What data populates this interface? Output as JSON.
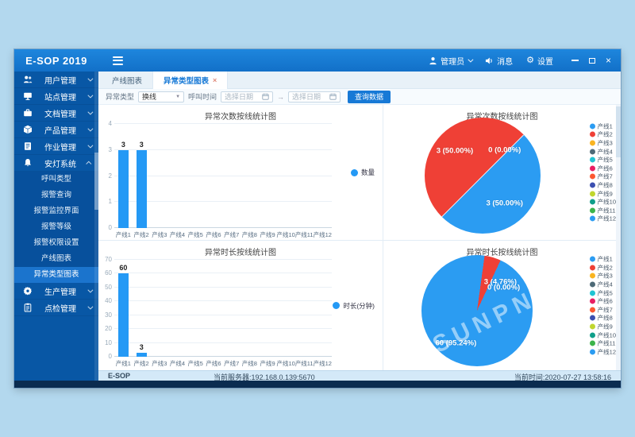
{
  "app": {
    "title": "E-SOP 2019"
  },
  "header": {
    "user_label": "管理员",
    "messages_label": "消息",
    "settings_label": "设置"
  },
  "sidebar": {
    "items": [
      {
        "label": "用户管理",
        "icon": "users-icon",
        "expandable": true
      },
      {
        "label": "站点管理",
        "icon": "monitor-icon",
        "expandable": true
      },
      {
        "label": "文档管理",
        "icon": "briefcase-icon",
        "expandable": true
      },
      {
        "label": "产品管理",
        "icon": "product-box-icon",
        "expandable": true
      },
      {
        "label": "作业管理",
        "icon": "tasks-icon",
        "expandable": true
      },
      {
        "label": "安灯系统",
        "icon": "bell-icon",
        "expandable": true,
        "expanded": true,
        "children": [
          {
            "label": "呼叫类型"
          },
          {
            "label": "报警查询"
          },
          {
            "label": "报警监控界面"
          },
          {
            "label": "报警等级"
          },
          {
            "label": "报警权限设置"
          },
          {
            "label": "产线图表"
          },
          {
            "label": "异常类型图表",
            "active": true
          }
        ]
      },
      {
        "label": "生产管理",
        "icon": "gear-icon",
        "expandable": true
      },
      {
        "label": "点检管理",
        "icon": "clipboard-icon",
        "expandable": true
      }
    ]
  },
  "tabs": [
    {
      "label": "产线图表",
      "active": false,
      "closable": false
    },
    {
      "label": "异常类型图表",
      "active": true,
      "closable": true
    }
  ],
  "filters": {
    "type_label": "异常类型",
    "type_value": "换线",
    "time_label": "呼叫时间",
    "date_from_placeholder": "选择日期",
    "range_separator": "→",
    "date_to_placeholder": "选择日期",
    "search_button": "查询数据"
  },
  "pie_colors": [
    "#2b9cf2",
    "#ef4036",
    "#f9b421",
    "#4d6a77",
    "#21c4d3",
    "#e91e63",
    "#fc5730",
    "#3b4fb0",
    "#c0d62e",
    "#0f9f8a",
    "#3cb44a",
    "#2b9cf2"
  ],
  "chart_data": [
    {
      "id": "abnormal-count-bar",
      "type": "bar",
      "title": "异常次数按线统计图",
      "categories": [
        "产线1",
        "产线2",
        "产线3",
        "产线4",
        "产线5",
        "产线6",
        "产线7",
        "产线8",
        "产线9",
        "产线10",
        "产线11",
        "产线12"
      ],
      "values": [
        3,
        3,
        0,
        0,
        0,
        0,
        0,
        0,
        0,
        0,
        0,
        0
      ],
      "ylim": [
        0,
        4
      ],
      "yticks": [
        0,
        1,
        2,
        3,
        4
      ],
      "legend": "数量",
      "legend_position": "right",
      "bar_color": "#2499f5",
      "grid": true
    },
    {
      "id": "abnormal-count-pie",
      "type": "pie",
      "title": "异常次数按线统计图",
      "categories": [
        "产线1",
        "产线2",
        "产线3",
        "产线4",
        "产线5",
        "产线6",
        "产线7",
        "产线8",
        "产线9",
        "产线10",
        "产线11",
        "产线12"
      ],
      "values": [
        3,
        3,
        0,
        0,
        0,
        0,
        0,
        0,
        0,
        0,
        0,
        0
      ],
      "start_angle": 45,
      "divider_angle": 45,
      "legend_position": "right",
      "visible_labels": [
        {
          "text": "3 (50.00%)",
          "x": 26,
          "y": 29
        },
        {
          "text": "0 (0.00%)",
          "x": 69,
          "y": 28
        },
        {
          "text": "3 (50.00%)",
          "x": 69,
          "y": 74
        }
      ]
    },
    {
      "id": "abnormal-duration-bar",
      "type": "bar",
      "title": "异常时长按线统计图",
      "categories": [
        "产线1",
        "产线2",
        "产线3",
        "产线4",
        "产线5",
        "产线6",
        "产线7",
        "产线8",
        "产线9",
        "产线10",
        "产线11",
        "产线12"
      ],
      "values": [
        60,
        3,
        0,
        0,
        0,
        0,
        0,
        0,
        0,
        0,
        0,
        0
      ],
      "ylim": [
        0,
        70
      ],
      "yticks": [
        0,
        10,
        20,
        30,
        40,
        50,
        60,
        70
      ],
      "legend": "时长(分钟)",
      "legend_position": "right",
      "bar_color": "#2499f5",
      "grid": true
    },
    {
      "id": "abnormal-duration-pie",
      "type": "pie",
      "title": "异常时长按线统计图",
      "categories": [
        "产线1",
        "产线2",
        "产线3",
        "产线4",
        "产线5",
        "产线6",
        "产线7",
        "产线8",
        "产线9",
        "产线10",
        "产线11",
        "产线12"
      ],
      "values": [
        60,
        3,
        0,
        0,
        0,
        0,
        0,
        0,
        0,
        0,
        0,
        0
      ],
      "start_angle": 25,
      "legend_position": "right",
      "visible_labels": [
        {
          "text": "3 (4.76%)",
          "x": 71,
          "y": 24
        },
        {
          "text": "0 (0.00%)",
          "x": 74,
          "y": 29
        },
        {
          "text": "60 (95.24%)",
          "x": 31,
          "y": 79
        }
      ]
    }
  ],
  "watermark": "SUNPN讯鹏",
  "statusbar": {
    "app_name": "E-SOP",
    "server": "当前服务器:192.168.0.139:5670",
    "time": "当前时间:2020-07-27 13:58:16"
  },
  "colors": {
    "accent": "#1779d6",
    "header_blue": "#1679d3",
    "sidebar_blue": "#0857a5",
    "sidebar_active": "#1b74cd",
    "bar_blue": "#2499f5",
    "pie_red": "#ef4036",
    "footer_navy": "#0b2c50"
  }
}
